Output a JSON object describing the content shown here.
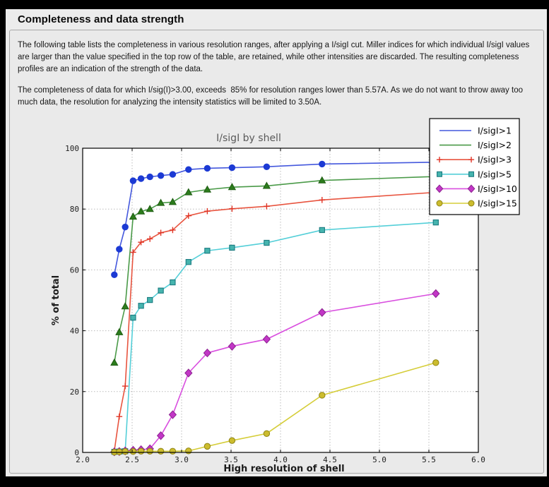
{
  "page": {
    "title": "Completeness and data strength",
    "paragraph1": "The following table lists the completeness in various resolution ranges, after applying a I/sigI cut. Miller indices for which individual I/sigI values are larger than the value specified in the top row of the table, are retained, while other intensities are discarded. The resulting completeness profiles are an indication of the strength of the data.",
    "paragraph2": "The completeness of data for which I/sig(I)>3.00, exceeds  85% for resolution ranges lower than 5.57A. As we do not want to throw away too much data, the resolution for analyzing the intensity statistics will be limited to 3.50A."
  },
  "chart_data": {
    "type": "line",
    "title": "I/sigI by shell",
    "xlabel": "High resolution of shell",
    "ylabel": "% of total",
    "xlim": [
      2.0,
      6.0
    ],
    "ylim": [
      0,
      100
    ],
    "xticks": [
      2.0,
      2.5,
      3.0,
      3.5,
      4.0,
      4.5,
      5.0,
      5.5,
      6.0
    ],
    "xtick_labels": [
      "2.0",
      "2.5",
      "3.0",
      "3.5",
      "4.0",
      "4.5",
      "5.0",
      "5.5",
      "6.0"
    ],
    "yticks": [
      0,
      20,
      40,
      60,
      80,
      100
    ],
    "ytick_labels": [
      "0",
      "20",
      "40",
      "60",
      "80",
      "100"
    ],
    "grid": true,
    "legend_position": "upper right, overlapping plot",
    "x": [
      2.32,
      2.37,
      2.43,
      2.51,
      2.59,
      2.68,
      2.79,
      2.91,
      3.07,
      3.26,
      3.51,
      3.86,
      4.42,
      5.57
    ],
    "series": [
      {
        "name": "I/sigI>1",
        "marker": "circle",
        "line_color": "#4458dd",
        "marker_fill": "#1c3ad4",
        "marker_edge": "#1c3ad4",
        "legend_markers": false,
        "values": [
          58.4,
          66.8,
          74.1,
          89.3,
          90.0,
          90.6,
          91.0,
          91.4,
          93.0,
          93.4,
          93.6,
          93.9,
          94.8,
          95.4
        ]
      },
      {
        "name": "I/sigI>2",
        "marker": "triangle",
        "line_color": "#4a9a48",
        "marker_fill": "#2c7c1c",
        "marker_edge": "#1e5c12",
        "legend_markers": false,
        "values": [
          29.5,
          39.5,
          48.0,
          77.5,
          79.2,
          80.0,
          82.0,
          82.3,
          85.5,
          86.4,
          87.2,
          87.6,
          89.4,
          90.7
        ]
      },
      {
        "name": "I/sigI>3",
        "marker": "plus",
        "line_color": "#e8543f",
        "marker_fill": "#e03425",
        "marker_edge": "#e03425",
        "legend_markers": true,
        "values": [
          0.5,
          11.8,
          21.8,
          65.8,
          69.1,
          70.2,
          72.2,
          73.1,
          77.8,
          79.3,
          80.1,
          80.9,
          83.0,
          85.5
        ]
      },
      {
        "name": "I/sigI>5",
        "marker": "square",
        "line_color": "#54cfd8",
        "marker_fill": "#46b4ae",
        "marker_edge": "#1a7b80",
        "legend_markers": true,
        "values": [
          0.2,
          0.3,
          0.4,
          44.3,
          48.2,
          50.1,
          53.2,
          55.9,
          62.6,
          66.3,
          67.3,
          68.9,
          73.1,
          75.6
        ]
      },
      {
        "name": "I/sigI>10",
        "marker": "diamond",
        "line_color": "#d94fdf",
        "marker_fill": "#c236c6",
        "marker_edge": "#8c2390",
        "legend_markers": true,
        "values": [
          0.2,
          0.3,
          0.5,
          0.7,
          0.9,
          1.2,
          5.5,
          12.4,
          26.1,
          32.7,
          34.9,
          37.2,
          46.0,
          52.2
        ]
      },
      {
        "name": "I/sigI>15",
        "marker": "circle",
        "line_color": "#d5cd38",
        "marker_fill": "#ccbc2e",
        "marker_edge": "#8e8414",
        "legend_markers": true,
        "values": [
          0.1,
          0.2,
          0.3,
          0.3,
          0.4,
          0.4,
          0.4,
          0.4,
          0.5,
          2.0,
          3.9,
          6.2,
          18.8,
          29.5
        ]
      }
    ]
  },
  "colors": {
    "page_frame": "#000000",
    "window_bg": "#ececec",
    "panel_bg": "#eaeaea",
    "plot_bg": "#ffffff",
    "grid": "#bbbbbb",
    "chart_title": "#5a5a5a",
    "tick_text": "#222222"
  }
}
